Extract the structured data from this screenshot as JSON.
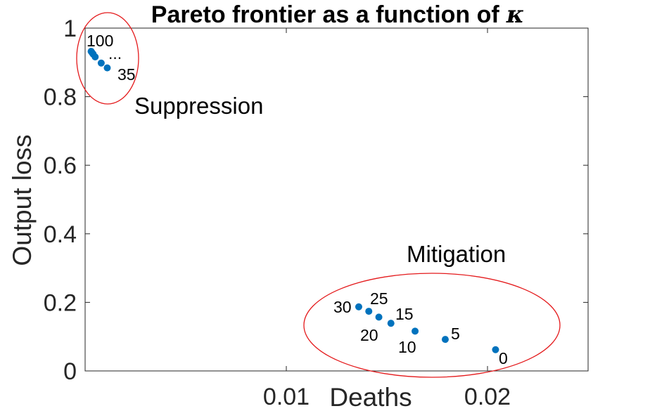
{
  "chart_data": {
    "type": "scatter",
    "title": "Pareto frontier as a function of",
    "title_symbol": "κ",
    "xlabel": "Deaths",
    "ylabel": "Output loss",
    "xlim": [
      0.0,
      0.025
    ],
    "ylim": [
      0,
      1
    ],
    "xticks": [
      0.01,
      0.02
    ],
    "xtick_labels": [
      "0.01",
      "0.02"
    ],
    "yticks": [
      0,
      0.2,
      0.4,
      0.6,
      0.8,
      1
    ],
    "ytick_labels": [
      "0",
      "0.2",
      "0.4",
      "0.6",
      "0.8",
      "1"
    ],
    "grid": false,
    "marker_color": "#0072BD",
    "ellipse_color": "#E41A1C",
    "points": [
      {
        "x": 0.0003,
        "y": 0.932
      },
      {
        "x": 0.00035,
        "y": 0.928
      },
      {
        "x": 0.0004,
        "y": 0.924
      },
      {
        "x": 0.0005,
        "y": 0.916
      },
      {
        "x": 0.0008,
        "y": 0.898
      },
      {
        "x": 0.0011,
        "y": 0.884
      },
      {
        "x": 0.0136,
        "y": 0.187
      },
      {
        "x": 0.0141,
        "y": 0.174
      },
      {
        "x": 0.0146,
        "y": 0.157
      },
      {
        "x": 0.0152,
        "y": 0.139
      },
      {
        "x": 0.0164,
        "y": 0.116
      },
      {
        "x": 0.0179,
        "y": 0.092
      },
      {
        "x": 0.0204,
        "y": 0.062
      }
    ],
    "point_labels": [
      "100",
      "...",
      "35",
      "30",
      "25",
      "20",
      "15",
      "10",
      "5",
      "0"
    ],
    "regions": [
      {
        "name": "Suppression"
      },
      {
        "name": "Mitigation"
      }
    ]
  }
}
